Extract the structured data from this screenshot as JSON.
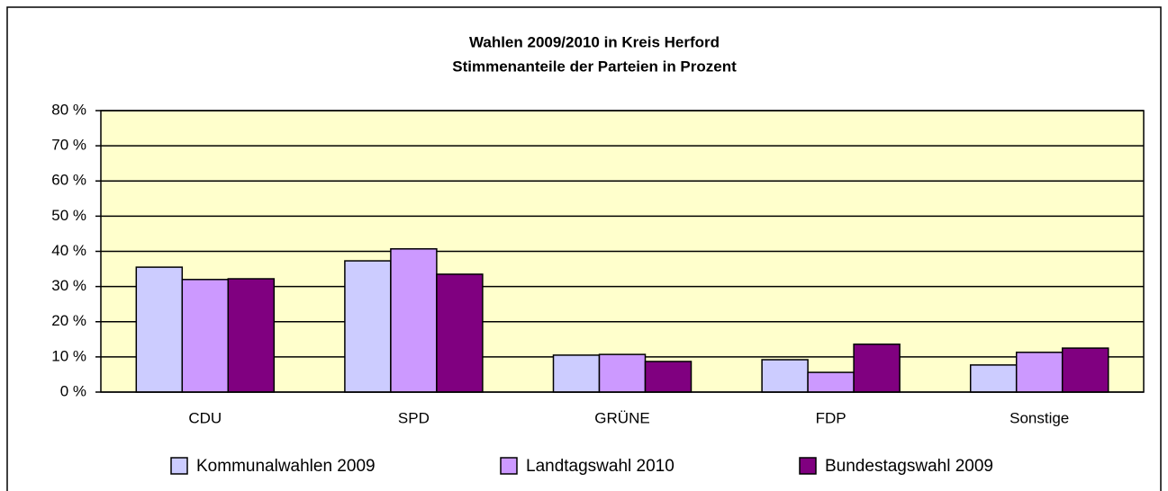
{
  "chart_data": {
    "type": "bar",
    "title": "Wahlen 2009/2010 in Kreis Herford",
    "subtitle": "Stimmenanteile der Parteien in Prozent",
    "categories": [
      "CDU",
      "SPD",
      "GRÜNE",
      "FDP",
      "Sonstige"
    ],
    "series": [
      {
        "name": "Kommunalwahlen 2009",
        "color": "#ccccff",
        "values": [
          35.5,
          37.3,
          10.5,
          9.2,
          7.7
        ]
      },
      {
        "name": "Landtagswahl 2010",
        "color": "#cc99ff",
        "values": [
          32.0,
          40.7,
          10.7,
          5.6,
          11.3
        ]
      },
      {
        "name": "Bundestagswahl 2009",
        "color": "#800080",
        "values": [
          32.2,
          33.5,
          8.7,
          13.6,
          12.5
        ]
      }
    ],
    "ylim": [
      0,
      80
    ],
    "yticks": [
      {
        "value": 0,
        "label": "0 %"
      },
      {
        "value": 10,
        "label": "10 %"
      },
      {
        "value": 20,
        "label": "20 %"
      },
      {
        "value": 30,
        "label": "30 %"
      },
      {
        "value": 40,
        "label": "40 %"
      },
      {
        "value": 50,
        "label": "50 %"
      },
      {
        "value": 60,
        "label": "60 %"
      },
      {
        "value": 70,
        "label": "70 %"
      },
      {
        "value": 80,
        "label": "80 %"
      }
    ],
    "grid": true,
    "legend": "bottom"
  }
}
